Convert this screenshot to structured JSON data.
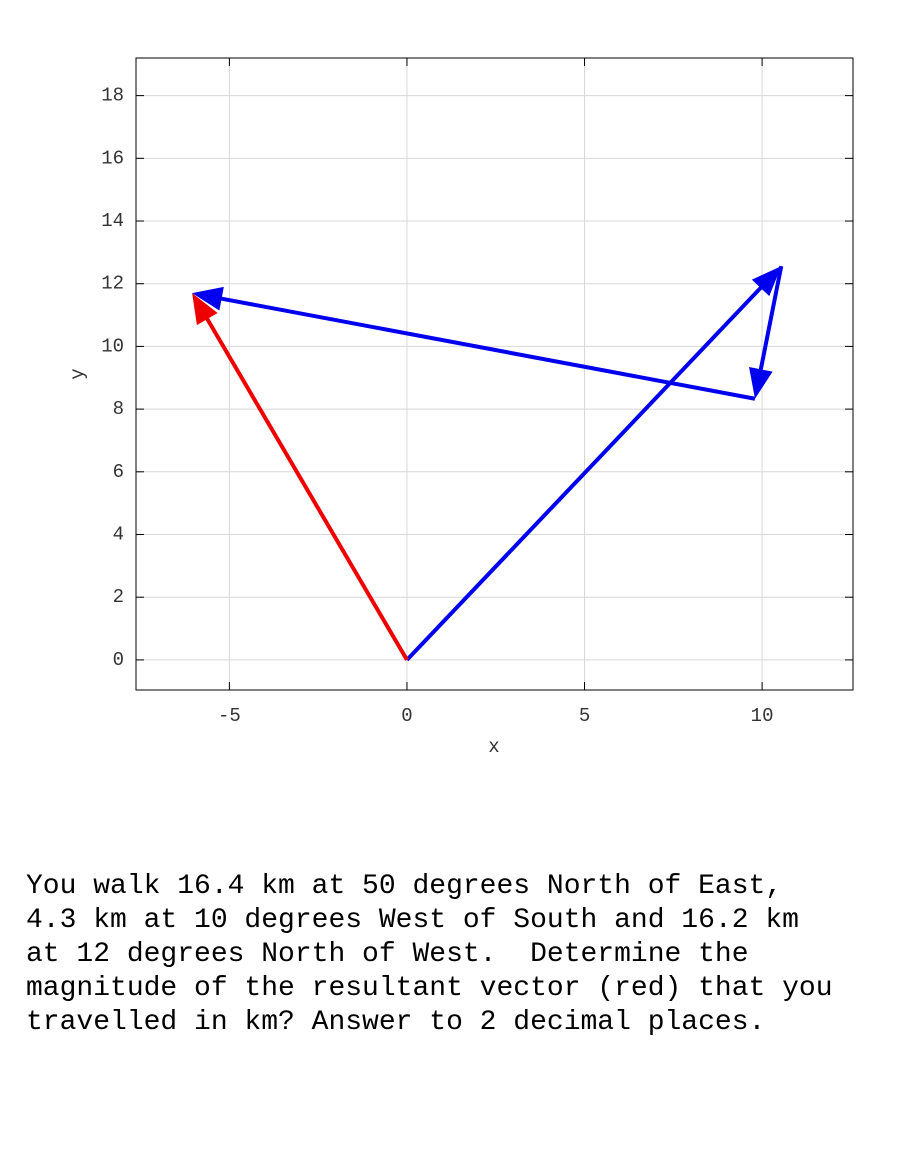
{
  "chart_data": {
    "type": "vector",
    "xlabel": "x",
    "ylabel": "y",
    "xlim": [
      -7.63,
      12.56
    ],
    "ylim": [
      -0.96,
      19.2
    ],
    "xticks": [
      -5,
      0,
      5,
      10
    ],
    "yticks": [
      0,
      2,
      4,
      6,
      8,
      10,
      12,
      14,
      16,
      18
    ],
    "grid": true,
    "vectors": [
      {
        "color": "#0000ee",
        "x0": 0,
        "y0": 0,
        "x1": 10.54,
        "y1": 12.56
      },
      {
        "color": "#0000ee",
        "x0": 10.54,
        "y0": 12.56,
        "x1": 9.8,
        "y1": 8.33
      },
      {
        "color": "#0000ee",
        "x0": 9.8,
        "y0": 8.33,
        "x1": -6.05,
        "y1": 11.7
      },
      {
        "color": "#ee0000",
        "x0": 0,
        "y0": 0,
        "x1": -6.05,
        "y1": 11.7
      }
    ]
  },
  "question": [
    "You walk 16.4 km at 50 degrees North of East,",
    "4.3 km at 10 degrees West of South and 16.2 km",
    "at 12 degrees North of West.  Determine the",
    "magnitude of the resultant vector (red) that you",
    "travelled in km? Answer to 2 decimal places."
  ]
}
